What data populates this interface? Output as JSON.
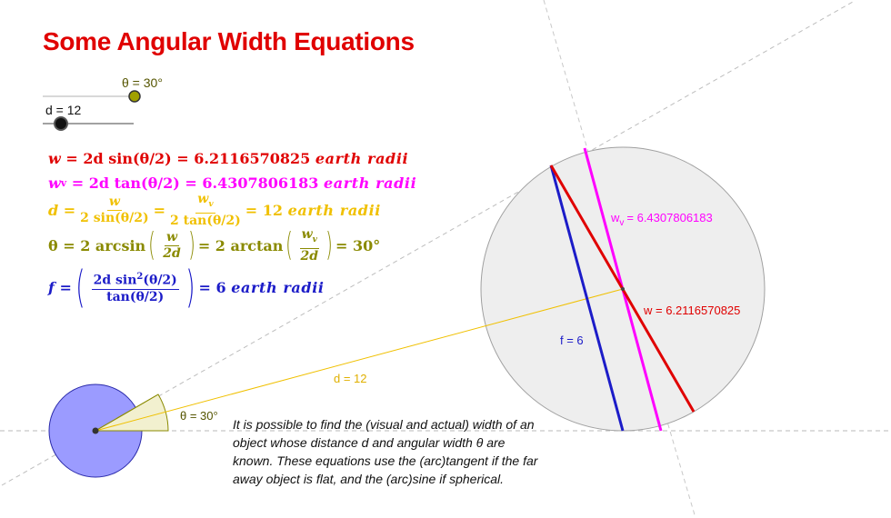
{
  "title": "Some Angular Width Equations",
  "sliders": {
    "theta": {
      "label": "θ = 30°",
      "value": 30
    },
    "d": {
      "label": "d = 12",
      "value": 12
    }
  },
  "equations": {
    "w": {
      "lhs": "w",
      "rhs": "= 2d sin(θ/2) = 6.2116570825",
      "unit": "earth radii"
    },
    "wv": {
      "lhs": "w",
      "sub": "v",
      "rhs": "= 2d tan(θ/2) = 6.4307806183",
      "unit": "earth radii"
    },
    "d": {
      "lhs": "d =",
      "frac1_num": "w",
      "frac1_den": "2 sin(θ/2)",
      "eq": "=",
      "frac2_num": "w",
      "frac2_sub": "v",
      "frac2_den": "2 tan(θ/2)",
      "rhs": "= 12",
      "unit": "earth radii"
    },
    "theta": {
      "lhs": "θ = 2 arcsin",
      "frac1_num": "w",
      "frac1_den": "2d",
      "mid": "= 2 arctan",
      "frac2_num": "w",
      "frac2_sub": "v",
      "frac2_den": "2d",
      "rhs": "= 30°"
    },
    "f": {
      "lhs": "f =",
      "num": "2d sin",
      "num_sup": "2",
      "num_tail": "(θ/2)",
      "den": "tan(θ/2)",
      "rhs": "= 6",
      "unit": "earth radii"
    }
  },
  "labels": {
    "theta_angle": "θ = 30°",
    "d_line": "d = 12",
    "wv_line": "w",
    "wv_line_sub": "v",
    "wv_line_value": "= 6.4307806183",
    "w_line": "w = 6.2116570825",
    "f_line": "f = 6"
  },
  "note": "It is possible to find the (visual and actual) width of an object whose distance d and angular width θ are known. These equations use the (arc)tangent if the far away object is flat, and the (arc)sine if spherical.",
  "colors": {
    "title": "#e00000",
    "w": "#e00000",
    "wv": "#ff00ff",
    "d": "#f0c000",
    "theta": "#8a8a00",
    "f": "#1c1cc8",
    "earth": "#9b9bff",
    "object": "#eeeeee"
  }
}
